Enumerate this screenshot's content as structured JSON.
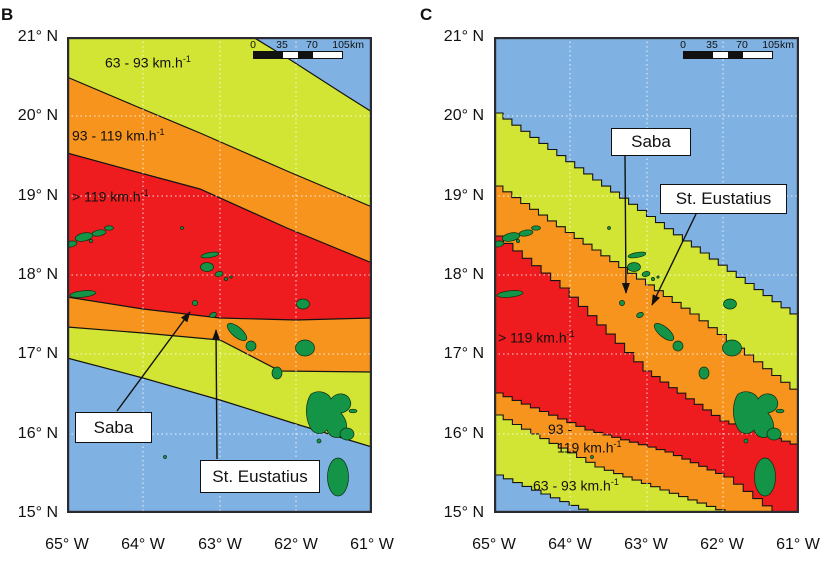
{
  "colors": {
    "ocean": "#7FB2E2",
    "band_63_93": "#D3E534",
    "band_93_119": "#F7941E",
    "band_gt_119": "#EE1C1E",
    "land": "#149447"
  },
  "panels": {
    "b": {
      "letter": "B",
      "lat_labels": [
        "21° N",
        "20° N",
        "19° N",
        "18° N",
        "17° N",
        "16° N",
        "15° N"
      ],
      "lon_labels": [
        "65° W",
        "64° W",
        "63° W",
        "62° W",
        "61° W"
      ],
      "scalebar": {
        "ticks": [
          "0",
          "35",
          "70",
          "105"
        ],
        "unit": "km"
      },
      "zone_labels": {
        "low": {
          "text": "63 - 93 km.h",
          "exp": "-1"
        },
        "mid": {
          "text": "93 - 119 km.h",
          "exp": "-1"
        },
        "high": {
          "text": "> 119 km.h",
          "exp": "-1"
        }
      },
      "annotations": {
        "saba": "Saba",
        "st_eustatius": "St. Eustatius"
      }
    },
    "c": {
      "letter": "C",
      "lat_labels": [
        "21° N",
        "20° N",
        "19° N",
        "18° N",
        "17° N",
        "16° N",
        "15° N"
      ],
      "lon_labels": [
        "65° W",
        "64° W",
        "63° W",
        "62° W",
        "61° W"
      ],
      "scalebar": {
        "ticks": [
          "0",
          "35",
          "70",
          "105"
        ],
        "unit": "km"
      },
      "zone_labels": {
        "high": {
          "text": "> 119 km.h",
          "exp": "-1"
        },
        "mid": {
          "line1": "93 -",
          "text": "119 km.h",
          "exp": "-1"
        },
        "low": {
          "text": "63 - 93 km.h",
          "exp": "-1"
        }
      },
      "annotations": {
        "saba": "Saba",
        "st_eustatius": "St. Eustatius"
      }
    }
  }
}
